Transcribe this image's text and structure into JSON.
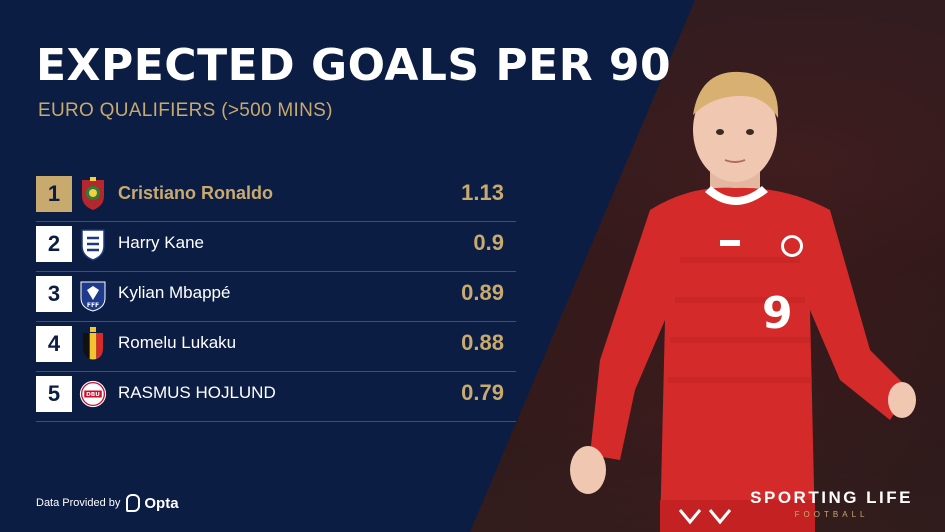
{
  "header": {
    "title": "EXPECTED GOALS PER 90",
    "subtitle": "EURO QUALIFIERS (>500 MINS)"
  },
  "rankings": [
    {
      "rank": "1",
      "flag": "portugal-crest-icon",
      "name": "Cristiano Ronaldo",
      "value": "1.13"
    },
    {
      "rank": "2",
      "flag": "england-crest-icon",
      "name": "Harry Kane",
      "value": "0.9"
    },
    {
      "rank": "3",
      "flag": "france-crest-icon",
      "name": "Kylian Mbappé",
      "value": "0.89"
    },
    {
      "rank": "4",
      "flag": "belgium-crest-icon",
      "name": "Romelu Lukaku",
      "value": "0.88"
    },
    {
      "rank": "5",
      "flag": "denmark-crest-icon",
      "name": "RASMUS HOJLUND",
      "value": "0.79"
    }
  ],
  "footer": {
    "provided_by": "Data Provided by",
    "provider": "Opta",
    "brand": "SPORTING LIFE",
    "brand_sub": "FOOTBALL"
  },
  "player": {
    "shirt_number": "9"
  },
  "colors": {
    "navy": "#0c1d44",
    "gold": "#c8a96e",
    "divider": "#3d4f78",
    "shirt_red": "#d42a2a"
  }
}
